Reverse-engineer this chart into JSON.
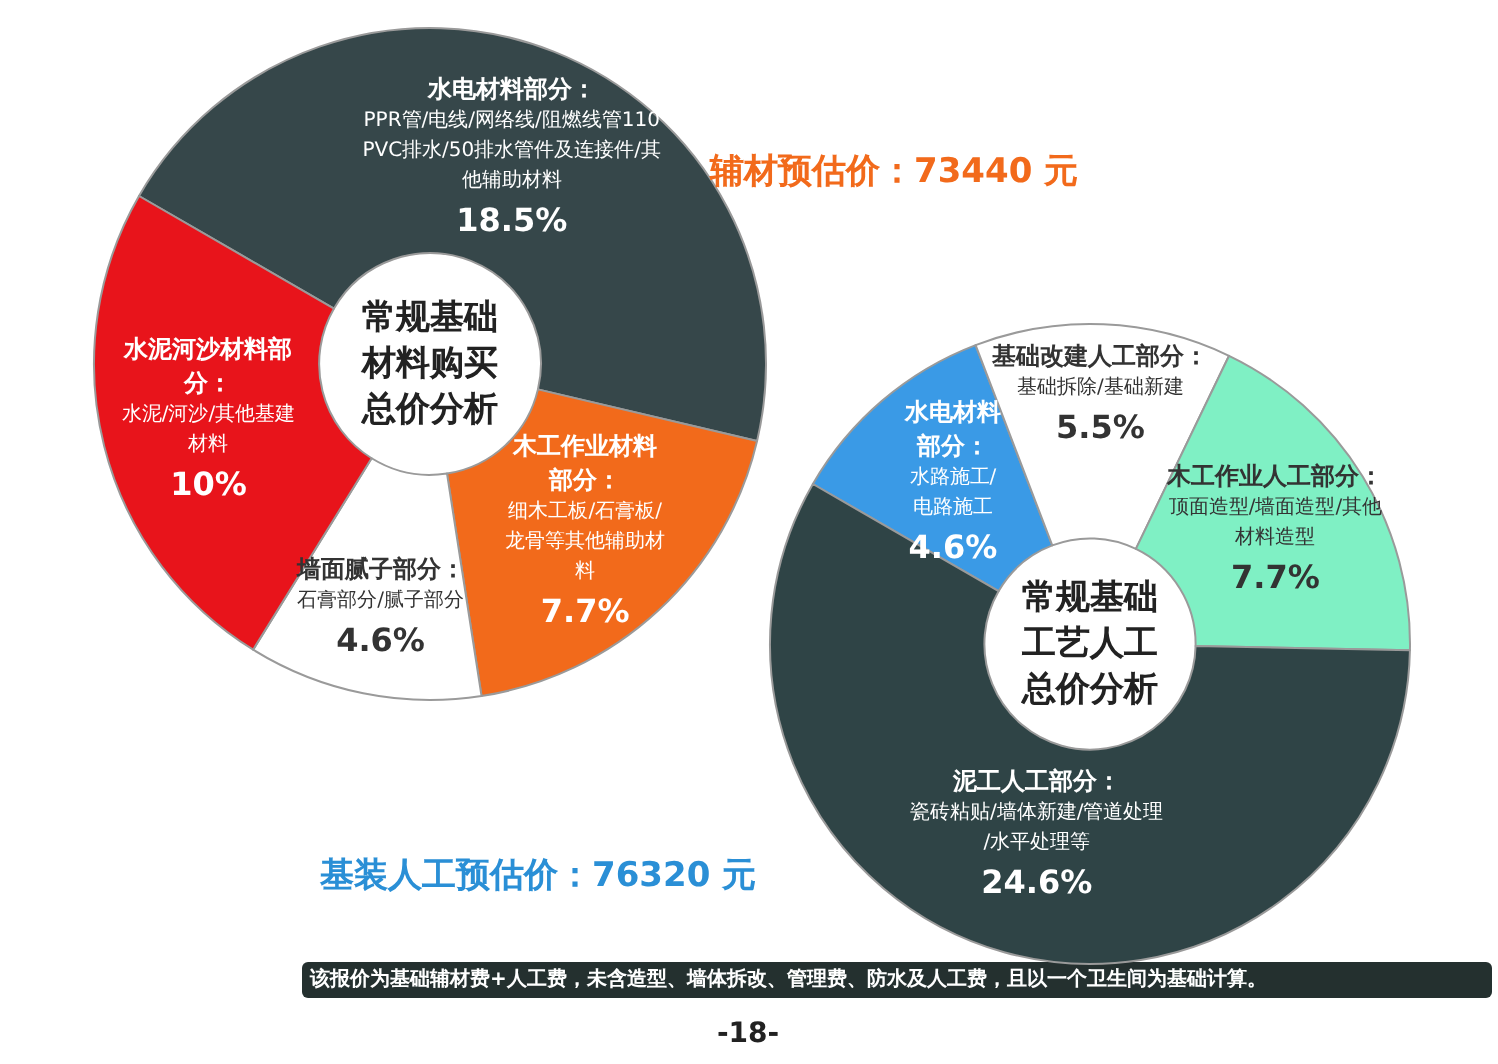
{
  "chart_data": [
    {
      "type": "donut",
      "title": "常规基础材料购买总价分析",
      "categories": [
        "水电材料部分：PPR管/电线/网络线/阻燃线管110PVC排水/50排水管件及连接件/其他辅助材料",
        "木工作业材料部分：细木工板/石膏板/龙骨等其他辅助材料",
        "墙面腻子部分：石膏部分/腻子部分",
        "水泥河沙材料部分：水泥/河沙/其他基建材料"
      ],
      "values": [
        18.5,
        7.7,
        4.6,
        10
      ],
      "colors": [
        "#36474a",
        "#f26a1b",
        "#ffffff",
        "#e8141b"
      ],
      "value_labels": [
        "18.5%",
        "7.7%",
        "4.6%",
        "10%"
      ],
      "annotations": [
        "辅材预估价：73440 元"
      ]
    },
    {
      "type": "donut",
      "title": "常规基础工艺人工总价分析",
      "categories": [
        "水电材料部分：水路施工/电路施工",
        "基础改建人工部分：基础拆除/基础新建",
        "木工作业人工部分：顶面造型/墙面造型/其他材料造型",
        "泥工人工部分：瓷砖粘贴/墙体新建/管道处理/水平处理等"
      ],
      "values": [
        4.6,
        5.5,
        7.7,
        24.6
      ],
      "colors": [
        "#3a9ae6",
        "#ffffff",
        "#7ff0c4",
        "#2f4446"
      ],
      "value_labels": [
        "4.6%",
        "5.5%",
        "7.7%",
        "24.6%"
      ],
      "annotations": [
        "基装人工预估价：76320 元",
        "该报价为基础辅材费+人工费，未含造型、墙体拆改、管理费、防水及人工费，且以一个卫生间为基础计算。",
        "-18-"
      ]
    }
  ]
}
